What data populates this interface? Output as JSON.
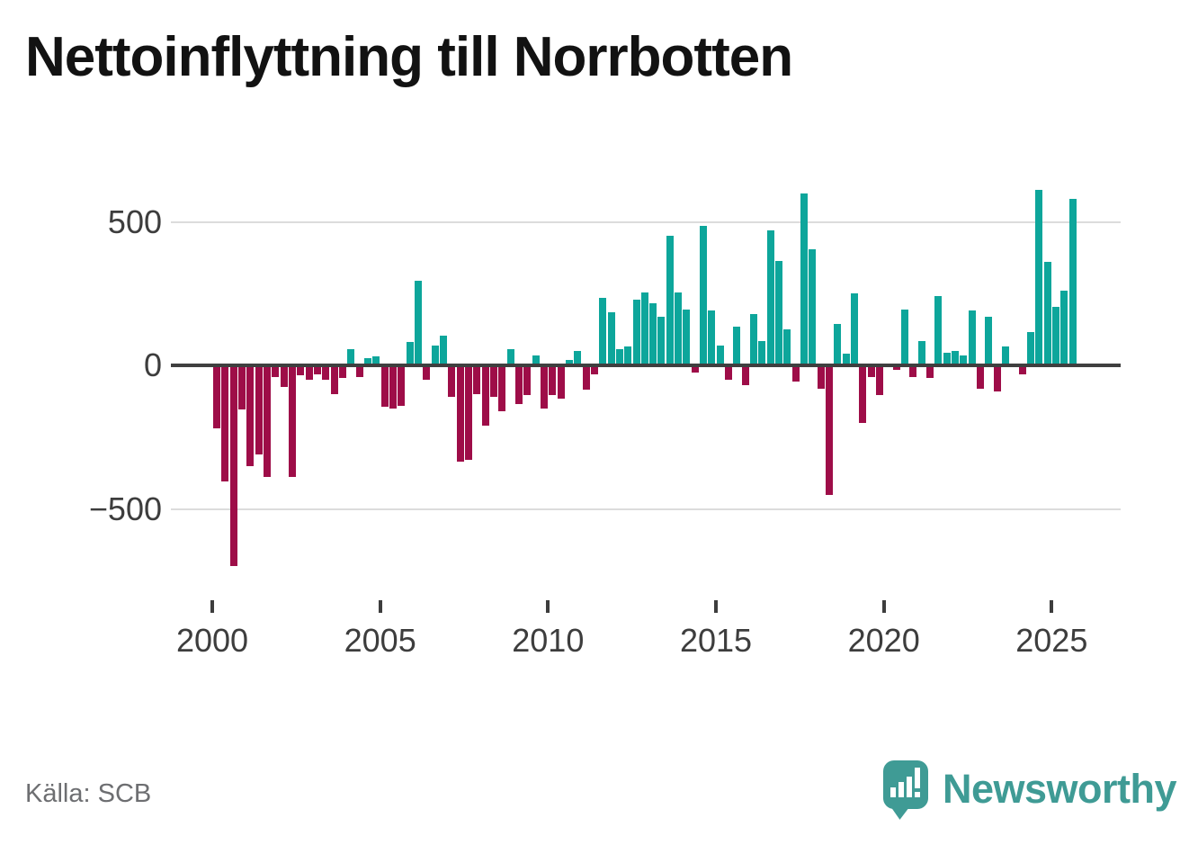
{
  "page": {
    "title": "Nettoinflyttning till Norrbotten",
    "source": "Källa: SCB",
    "brand": "Newsworthy"
  },
  "colors": {
    "positive_bar": "#0da69b",
    "negative_bar": "#9e0d48",
    "axis_line": "#3f3f3f",
    "gridline": "#dcdcdc",
    "tick_text": "#3d3d3d",
    "source_text": "#6d6e71",
    "brand_teal": "#3f9b95",
    "title_text": "#121212"
  },
  "chart_data": {
    "type": "bar",
    "title": "Nettoinflyttning till Norrbotten",
    "xlabel": "",
    "ylabel": "",
    "frequency": "quarterly",
    "x_start": "2000-Q1",
    "x_end": "2025-Q3",
    "ylim": [
      -750,
      650
    ],
    "grid": "horizontal",
    "legend": "none",
    "y_ticks": [
      500,
      0,
      -500
    ],
    "y_tick_labels": [
      "500",
      "0",
      "−500"
    ],
    "x_tick_years": [
      2000,
      2005,
      2010,
      2015,
      2020,
      2025
    ],
    "x_tick_labels": [
      "2000",
      "2005",
      "2010",
      "2015",
      "2020",
      "2025"
    ],
    "values": [
      -220,
      -405,
      -700,
      -155,
      -350,
      -310,
      -390,
      -40,
      -75,
      -390,
      -35,
      -50,
      -30,
      -50,
      -100,
      -45,
      55,
      -40,
      25,
      30,
      -145,
      -150,
      -140,
      80,
      295,
      -50,
      70,
      105,
      -110,
      -335,
      -330,
      -100,
      -210,
      -110,
      -160,
      55,
      -135,
      -105,
      35,
      -150,
      -105,
      -115,
      20,
      50,
      -85,
      -30,
      235,
      185,
      55,
      65,
      230,
      255,
      215,
      170,
      450,
      255,
      195,
      -25,
      485,
      190,
      70,
      -50,
      135,
      -70,
      180,
      85,
      470,
      365,
      125,
      -55,
      600,
      405,
      -80,
      -450,
      145,
      40,
      250,
      -200,
      -40,
      -105,
      0,
      -15,
      195,
      -40,
      85,
      -45,
      240,
      45,
      50,
      35,
      190,
      -80,
      170,
      -90,
      65,
      0,
      -30,
      115,
      610,
      360,
      205,
      260,
      580
    ]
  }
}
